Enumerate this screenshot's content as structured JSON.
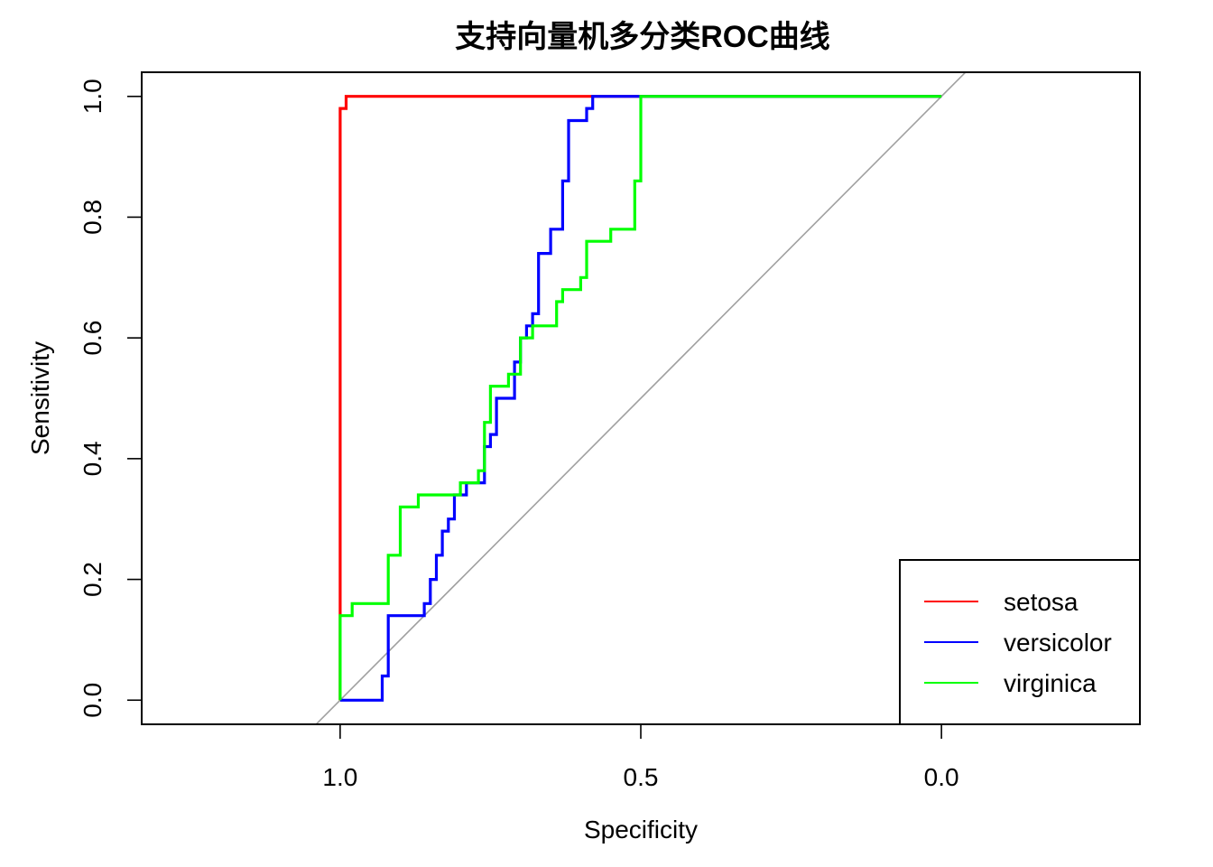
{
  "chart_data": {
    "type": "line",
    "title": "支持向量机多分类ROC曲线",
    "xlabel": "Specificity",
    "ylabel": "Sensitivity",
    "x_reversed": true,
    "xlim": [
      1.33,
      -0.33
    ],
    "ylim": [
      -0.04,
      1.04
    ],
    "x_ticks": [
      {
        "value": 1.0,
        "label": "1.0"
      },
      {
        "value": 0.5,
        "label": "0.5"
      },
      {
        "value": 0.0,
        "label": "0.0"
      }
    ],
    "y_ticks": [
      {
        "value": 0.0,
        "label": "0.0"
      },
      {
        "value": 0.2,
        "label": "0.2"
      },
      {
        "value": 0.4,
        "label": "0.4"
      },
      {
        "value": 0.6,
        "label": "0.6"
      },
      {
        "value": 0.8,
        "label": "0.8"
      },
      {
        "value": 1.0,
        "label": "1.0"
      }
    ],
    "diagonal_color": "#a0a0a0",
    "legend_position": "bottom-right",
    "series": [
      {
        "name": "setosa",
        "color": "#ff0000",
        "points": [
          [
            1.0,
            0.0
          ],
          [
            1.0,
            0.98
          ],
          [
            0.99,
            0.98
          ],
          [
            0.99,
            1.0
          ],
          [
            0.5,
            1.0
          ],
          [
            0.0,
            1.0
          ]
        ]
      },
      {
        "name": "versicolor",
        "color": "#0000ff",
        "points": [
          [
            1.0,
            0.0
          ],
          [
            0.93,
            0.0
          ],
          [
            0.93,
            0.04
          ],
          [
            0.92,
            0.04
          ],
          [
            0.92,
            0.14
          ],
          [
            0.86,
            0.14
          ],
          [
            0.86,
            0.16
          ],
          [
            0.85,
            0.16
          ],
          [
            0.85,
            0.2
          ],
          [
            0.84,
            0.2
          ],
          [
            0.84,
            0.24
          ],
          [
            0.83,
            0.24
          ],
          [
            0.83,
            0.28
          ],
          [
            0.82,
            0.28
          ],
          [
            0.82,
            0.3
          ],
          [
            0.81,
            0.3
          ],
          [
            0.81,
            0.34
          ],
          [
            0.79,
            0.34
          ],
          [
            0.79,
            0.36
          ],
          [
            0.76,
            0.36
          ],
          [
            0.76,
            0.42
          ],
          [
            0.75,
            0.42
          ],
          [
            0.75,
            0.44
          ],
          [
            0.74,
            0.44
          ],
          [
            0.74,
            0.5
          ],
          [
            0.71,
            0.5
          ],
          [
            0.71,
            0.56
          ],
          [
            0.7,
            0.56
          ],
          [
            0.7,
            0.6
          ],
          [
            0.69,
            0.6
          ],
          [
            0.69,
            0.62
          ],
          [
            0.68,
            0.62
          ],
          [
            0.68,
            0.64
          ],
          [
            0.67,
            0.64
          ],
          [
            0.67,
            0.74
          ],
          [
            0.65,
            0.74
          ],
          [
            0.65,
            0.78
          ],
          [
            0.63,
            0.78
          ],
          [
            0.63,
            0.86
          ],
          [
            0.62,
            0.86
          ],
          [
            0.62,
            0.96
          ],
          [
            0.59,
            0.96
          ],
          [
            0.59,
            0.98
          ],
          [
            0.58,
            0.98
          ],
          [
            0.58,
            1.0
          ],
          [
            0.5,
            1.0
          ],
          [
            0.0,
            1.0
          ]
        ]
      },
      {
        "name": "virginica",
        "color": "#00ff00",
        "points": [
          [
            1.0,
            0.0
          ],
          [
            1.0,
            0.14
          ],
          [
            0.98,
            0.14
          ],
          [
            0.98,
            0.16
          ],
          [
            0.92,
            0.16
          ],
          [
            0.92,
            0.24
          ],
          [
            0.9,
            0.24
          ],
          [
            0.9,
            0.32
          ],
          [
            0.87,
            0.32
          ],
          [
            0.87,
            0.34
          ],
          [
            0.8,
            0.34
          ],
          [
            0.8,
            0.36
          ],
          [
            0.77,
            0.36
          ],
          [
            0.77,
            0.38
          ],
          [
            0.76,
            0.38
          ],
          [
            0.76,
            0.46
          ],
          [
            0.75,
            0.46
          ],
          [
            0.75,
            0.52
          ],
          [
            0.72,
            0.52
          ],
          [
            0.72,
            0.54
          ],
          [
            0.7,
            0.54
          ],
          [
            0.7,
            0.6
          ],
          [
            0.68,
            0.6
          ],
          [
            0.68,
            0.62
          ],
          [
            0.64,
            0.62
          ],
          [
            0.64,
            0.66
          ],
          [
            0.63,
            0.66
          ],
          [
            0.63,
            0.68
          ],
          [
            0.6,
            0.68
          ],
          [
            0.6,
            0.7
          ],
          [
            0.59,
            0.7
          ],
          [
            0.59,
            0.76
          ],
          [
            0.55,
            0.76
          ],
          [
            0.55,
            0.78
          ],
          [
            0.51,
            0.78
          ],
          [
            0.51,
            0.86
          ],
          [
            0.5,
            0.86
          ],
          [
            0.5,
            1.0
          ],
          [
            0.0,
            1.0
          ]
        ]
      }
    ]
  }
}
